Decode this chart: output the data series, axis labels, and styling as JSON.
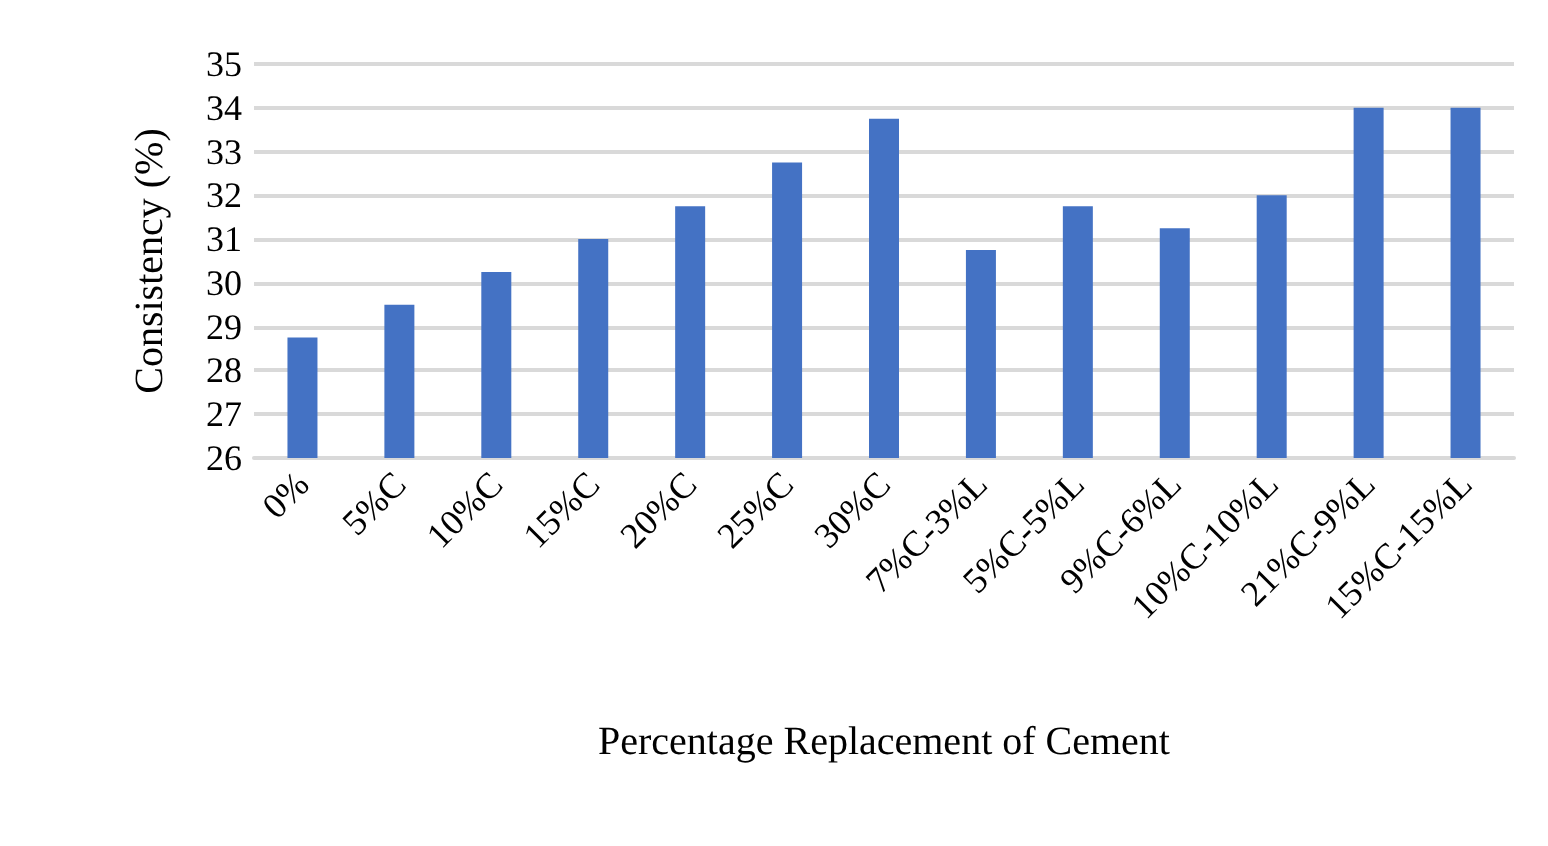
{
  "chart_data": {
    "type": "bar",
    "xlabel": "Percentage Replacement of Cement",
    "ylabel": "Consistency (%)",
    "categories": [
      "0%",
      "5%C",
      "10%C",
      "15%C",
      "20%C",
      "25%C",
      "30%C",
      "7%C-3%L",
      "5%C-5%L",
      "9%C-6%L",
      "10%C-10%L",
      "21%C-9%L",
      "15%C-15%L"
    ],
    "values": [
      28.75,
      29.5,
      30.25,
      31,
      31.75,
      32.75,
      33.75,
      30.75,
      31.75,
      31.25,
      32,
      34,
      34
    ],
    "color": "#4472c4",
    "ylim": [
      26,
      35
    ],
    "yticks": [
      26,
      27,
      28,
      29,
      30,
      31,
      32,
      33,
      34,
      35
    ],
    "grid": "y"
  }
}
